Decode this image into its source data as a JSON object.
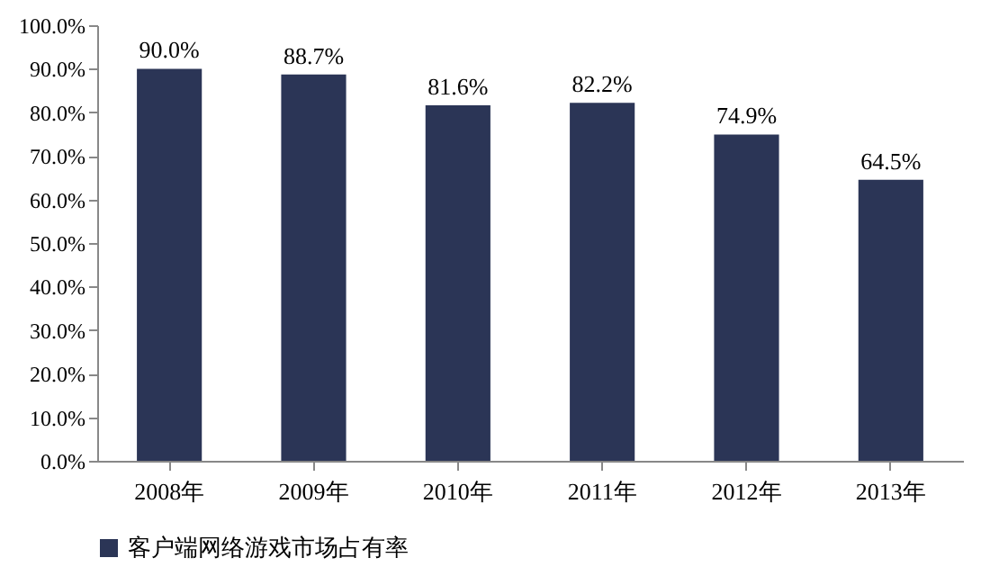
{
  "chart_data": {
    "type": "bar",
    "categories": [
      "2008年",
      "2009年",
      "2010年",
      "2011年",
      "2012年",
      "2013年"
    ],
    "series": [
      {
        "name": "客户端网络游戏市场占有率",
        "color": "#2b3556",
        "values": [
          90.0,
          88.7,
          81.6,
          82.2,
          74.9,
          64.5
        ]
      }
    ],
    "value_labels": [
      "90.0%",
      "88.7%",
      "81.6%",
      "82.2%",
      "74.9%",
      "64.5%"
    ],
    "ylim": [
      0,
      100
    ],
    "yticks": [
      {
        "value": 0,
        "label": "0.0%"
      },
      {
        "value": 10,
        "label": "10.0%"
      },
      {
        "value": 20,
        "label": "20.0%"
      },
      {
        "value": 30,
        "label": "30.0%"
      },
      {
        "value": 40,
        "label": "40.0%"
      },
      {
        "value": 50,
        "label": "50.0%"
      },
      {
        "value": 60,
        "label": "60.0%"
      },
      {
        "value": 70,
        "label": "70.0%"
      },
      {
        "value": 80,
        "label": "80.0%"
      },
      {
        "value": 90,
        "label": "90.0%"
      },
      {
        "value": 100,
        "label": "100.0%"
      }
    ],
    "grid": false,
    "legend": "bottom"
  }
}
